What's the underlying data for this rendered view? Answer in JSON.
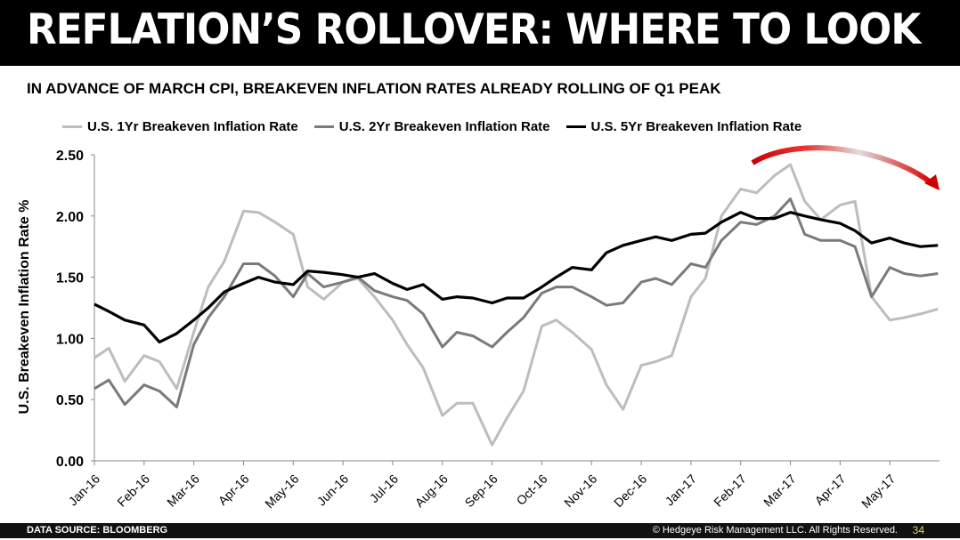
{
  "title": "REFLATION’S ROLLOVER: WHERE TO LOOK",
  "subtitle": "IN ADVANCE OF MARCH CPI, BREAKEVEN INFLATION RATES ALREADY ROLLING OF Q1 PEAK",
  "footer": {
    "source": "DATA SOURCE: BLOOMBERG",
    "copyright": "© Hedgeye Risk Management LLC. All Rights Reserved.",
    "page": "34"
  },
  "colors": {
    "accent_arrow": "#cc0000",
    "series": [
      "#bdbdbd",
      "#7a7a7a",
      "#000000"
    ]
  },
  "chart_data": {
    "type": "line",
    "title": "",
    "xlabel": "",
    "ylabel": "U.S. Breakeven Inflation Rate %",
    "ylim": [
      0,
      2.5
    ],
    "yticks": [
      "0.00",
      "0.50",
      "1.00",
      "1.50",
      "2.00",
      "2.50"
    ],
    "xticks": [
      "Jan-16",
      "Feb-16",
      "Mar-16",
      "Apr-16",
      "May-16",
      "Jun-16",
      "Jul-16",
      "Aug-16",
      "Sep-16",
      "Oct-16",
      "Nov-16",
      "Dec-16",
      "Jan-17",
      "Feb-17",
      "Mar-17",
      "Apr-17",
      "May-17"
    ],
    "grid": false,
    "legend": "top",
    "x": [
      "2016-01-01",
      "2016-01-10",
      "2016-01-20",
      "2016-02-01",
      "2016-02-10",
      "2016-02-20",
      "2016-03-01",
      "2016-03-10",
      "2016-03-20",
      "2016-04-01",
      "2016-04-10",
      "2016-04-20",
      "2016-05-01",
      "2016-05-10",
      "2016-05-20",
      "2016-06-01",
      "2016-06-10",
      "2016-06-20",
      "2016-07-01",
      "2016-07-10",
      "2016-07-20",
      "2016-08-01",
      "2016-08-10",
      "2016-08-20",
      "2016-09-01",
      "2016-09-10",
      "2016-09-20",
      "2016-10-01",
      "2016-10-10",
      "2016-10-20",
      "2016-11-01",
      "2016-11-10",
      "2016-11-20",
      "2016-12-01",
      "2016-12-10",
      "2016-12-20",
      "2017-01-01",
      "2017-01-10",
      "2017-01-20",
      "2017-02-01",
      "2017-02-10",
      "2017-02-20",
      "2017-03-01",
      "2017-03-10",
      "2017-03-20",
      "2017-04-01",
      "2017-04-10",
      "2017-04-20",
      "2017-05-01",
      "2017-05-10",
      "2017-05-20",
      "2017-05-31"
    ],
    "series": [
      {
        "name": "U.S. 1Yr Breakeven Inflation Rate",
        "values": [
          0.84,
          0.92,
          0.65,
          0.86,
          0.81,
          0.59,
          1.05,
          1.42,
          1.63,
          2.04,
          2.03,
          1.95,
          1.85,
          1.42,
          1.32,
          1.46,
          1.49,
          1.34,
          1.15,
          0.95,
          0.76,
          0.37,
          0.47,
          0.47,
          0.13,
          0.35,
          0.57,
          1.1,
          1.15,
          1.05,
          0.91,
          0.62,
          0.42,
          0.78,
          0.81,
          0.86,
          1.34,
          1.49,
          2.0,
          2.22,
          2.19,
          2.33,
          2.42,
          2.12,
          1.97,
          2.09,
          2.12,
          1.34,
          1.15,
          1.17,
          1.2,
          1.24
        ]
      },
      {
        "name": "U.S. 2Yr Breakeven Inflation Rate",
        "values": [
          0.59,
          0.66,
          0.46,
          0.62,
          0.57,
          0.44,
          0.95,
          1.17,
          1.34,
          1.61,
          1.61,
          1.51,
          1.34,
          1.53,
          1.42,
          1.46,
          1.5,
          1.39,
          1.34,
          1.31,
          1.2,
          0.93,
          1.05,
          1.02,
          0.93,
          1.05,
          1.17,
          1.37,
          1.42,
          1.42,
          1.34,
          1.27,
          1.29,
          1.46,
          1.49,
          1.44,
          1.61,
          1.58,
          1.8,
          1.95,
          1.93,
          2.0,
          2.14,
          1.85,
          1.8,
          1.8,
          1.75,
          1.34,
          1.58,
          1.53,
          1.51,
          1.53
        ]
      },
      {
        "name": "U.S. 5Yr Breakeven Inflation Rate",
        "values": [
          1.28,
          1.22,
          1.15,
          1.11,
          0.97,
          1.04,
          1.15,
          1.25,
          1.38,
          1.45,
          1.5,
          1.46,
          1.44,
          1.55,
          1.54,
          1.52,
          1.5,
          1.53,
          1.45,
          1.4,
          1.44,
          1.32,
          1.34,
          1.33,
          1.29,
          1.33,
          1.33,
          1.42,
          1.5,
          1.58,
          1.56,
          1.7,
          1.76,
          1.8,
          1.83,
          1.8,
          1.85,
          1.86,
          1.95,
          2.03,
          1.98,
          1.98,
          2.03,
          2.0,
          1.97,
          1.94,
          1.88,
          1.78,
          1.82,
          1.78,
          1.75,
          1.76
        ]
      }
    ]
  }
}
